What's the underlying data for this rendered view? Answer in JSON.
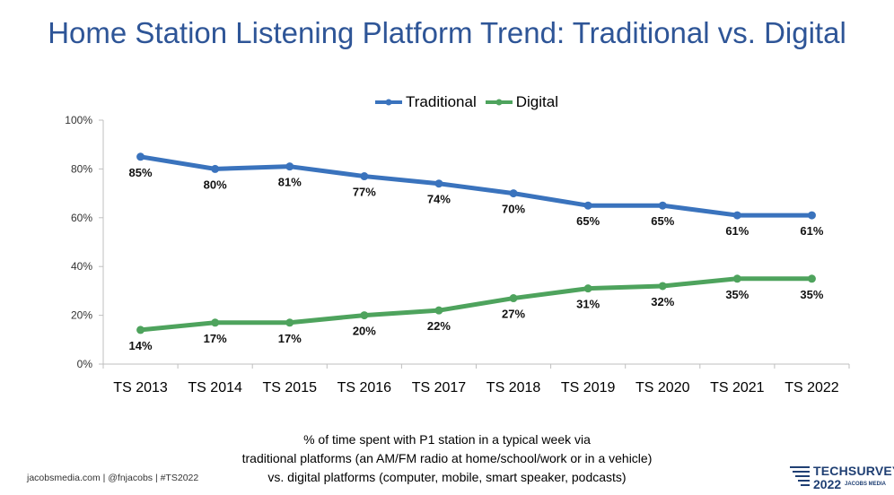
{
  "title": "Home Station Listening Platform Trend: Traditional vs. Digital",
  "caption": [
    "% of time spent with P1 station in a typical week via",
    "traditional platforms (an AM/FM radio at home/school/work or in a vehicle)",
    "vs. digital platforms (computer, mobile, smart speaker, podcasts)"
  ],
  "footer": "jacobsmedia.com  |  @fnjacobs  |  #TS2022",
  "logo": {
    "line1": "TECHSURVEY",
    "line2": "2022",
    "line3": "JACOBS MEDIA"
  },
  "colors": {
    "title": "#2e5597",
    "traditional": "#3a73bd",
    "digital": "#4ea35d",
    "axis": "#bfbfbf"
  },
  "chart_data": {
    "type": "line",
    "categories": [
      "TS 2013",
      "TS 2014",
      "TS 2015",
      "TS 2016",
      "TS 2017",
      "TS 2018",
      "TS 2019",
      "TS 2020",
      "TS 2021",
      "TS 2022"
    ],
    "series": [
      {
        "name": "Traditional",
        "values": [
          85,
          80,
          81,
          77,
          74,
          70,
          65,
          65,
          61,
          61
        ],
        "labels": [
          "85%",
          "80%",
          "81%",
          "77%",
          "74%",
          "70%",
          "65%",
          "65%",
          "61%",
          "61%"
        ]
      },
      {
        "name": "Digital",
        "values": [
          14,
          17,
          17,
          20,
          22,
          27,
          31,
          32,
          35,
          35
        ],
        "labels": [
          "14%",
          "17%",
          "17%",
          "20%",
          "22%",
          "27%",
          "31%",
          "32%",
          "35%",
          "35%"
        ]
      }
    ],
    "ylim": [
      0,
      100
    ],
    "yticks": [
      "0%",
      "20%",
      "40%",
      "60%",
      "80%",
      "100%"
    ],
    "grid": false,
    "legend": "top-center"
  }
}
